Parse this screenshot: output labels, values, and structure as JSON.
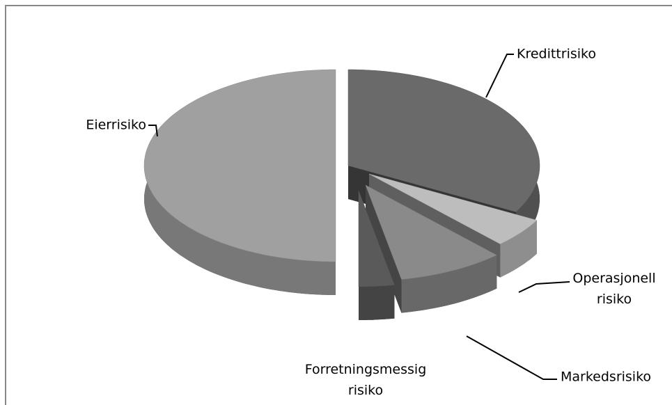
{
  "chart_data": {
    "type": "pie3d",
    "categories": [
      "Kredittrisiko",
      "Operasjonell risiko",
      "Markedsrisiko",
      "Forretningsmessig risiko",
      "Eierrisiko"
    ],
    "values": [
      33,
      5,
      9,
      3,
      50
    ],
    "colors": [
      "#6a6a6a",
      "#bdbdbd",
      "#8a8a8a",
      "#5a5a5a",
      "#a0a0a0"
    ]
  }
}
